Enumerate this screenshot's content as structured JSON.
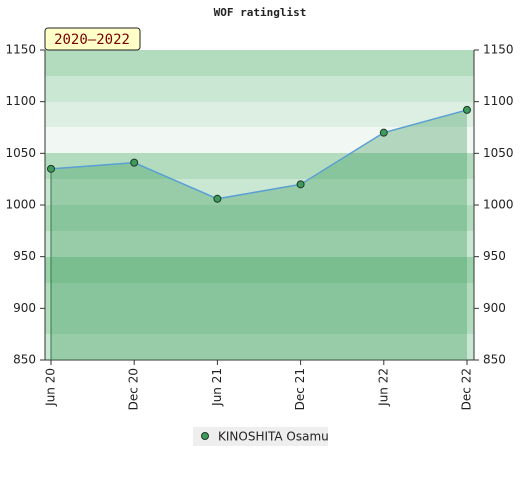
{
  "chart_data": {
    "type": "line",
    "title": "WOF ratinglist",
    "annotation": "2020–2022",
    "categories": [
      "Jun 20",
      "Dec 20",
      "Jun 21",
      "Dec 21",
      "Jun 22",
      "Dec 22"
    ],
    "series": [
      {
        "name": "KINOSHITA Osamu",
        "color": "#3d9c5c",
        "line_color": "#5a9fd4",
        "values": [
          1035,
          1041,
          1006,
          1020,
          1070,
          1092
        ]
      }
    ],
    "ylim": [
      850,
      1150
    ],
    "yticks": [
      850,
      900,
      950,
      1000,
      1050,
      1100,
      1150
    ],
    "y2lim": [
      850,
      1150
    ],
    "y2ticks": [
      850,
      900,
      950,
      1000,
      1050,
      1100,
      1150
    ]
  }
}
